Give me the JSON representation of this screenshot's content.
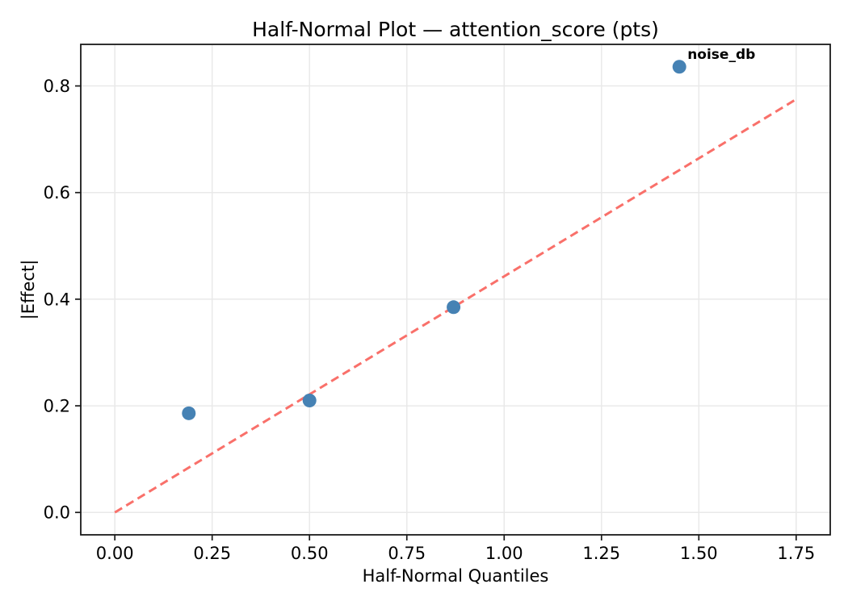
{
  "chart_data": {
    "type": "scatter",
    "title": "Half-Normal Plot — attention_score (pts)",
    "xlabel": "Half-Normal Quantiles",
    "ylabel": "|Effect|",
    "xlim": [
      -0.0875,
      1.8375
    ],
    "ylim": [
      -0.042,
      0.878
    ],
    "x_ticks": [
      0.0,
      0.25,
      0.5,
      0.75,
      1.0,
      1.25,
      1.5,
      1.75
    ],
    "x_tick_labels": [
      "0.00",
      "0.25",
      "0.50",
      "0.75",
      "1.00",
      "1.25",
      "1.50",
      "1.75"
    ],
    "y_ticks": [
      0.0,
      0.2,
      0.4,
      0.6,
      0.8
    ],
    "y_tick_labels": [
      "0.0",
      "0.2",
      "0.4",
      "0.6",
      "0.8"
    ],
    "grid": true,
    "legend": "none",
    "points": [
      {
        "x": 0.19,
        "y": 0.186,
        "label": ""
      },
      {
        "x": 0.5,
        "y": 0.21,
        "label": ""
      },
      {
        "x": 0.87,
        "y": 0.385,
        "label": ""
      },
      {
        "x": 1.45,
        "y": 0.836,
        "label": "noise_db"
      }
    ],
    "reference_line": {
      "style": "dashed",
      "x": [
        0.0,
        1.75
      ],
      "y": [
        0.0,
        0.775
      ]
    },
    "colors": {
      "point": "#4682B4",
      "line": "#f9706a",
      "annotation": "#ff0000",
      "grid": "#e9e9e9",
      "spine": "#1a1a1a",
      "background": "#ffffff"
    }
  }
}
